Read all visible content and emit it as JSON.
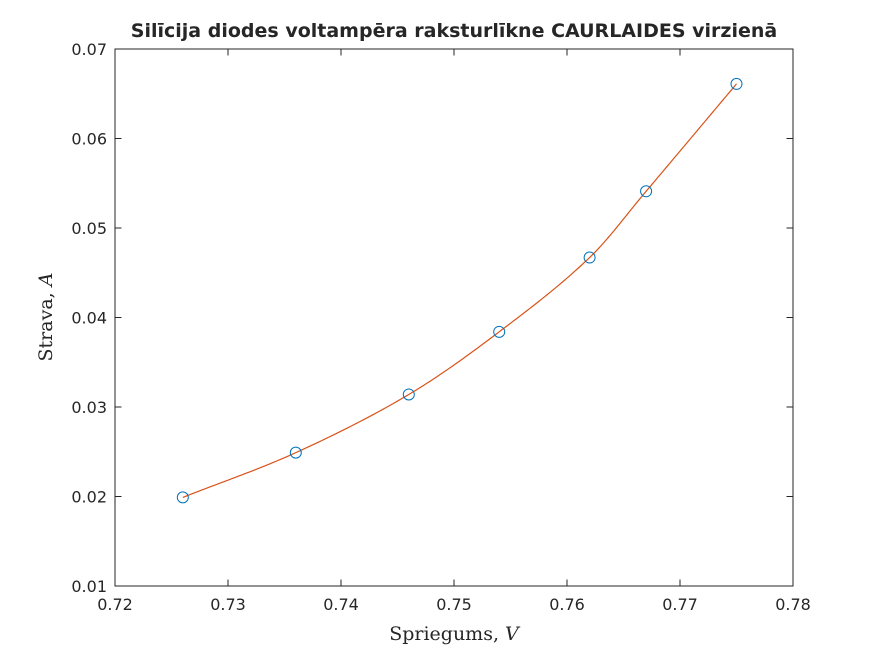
{
  "chart_data": {
    "type": "scatter",
    "title": "Silīcija diodes voltampēra raksturlīkne CAURLAIDES virzienā",
    "xlabel": "Spriegums,",
    "xlabel_var": "V",
    "ylabel": "Strava,",
    "ylabel_var": "A",
    "xlim": [
      0.72,
      0.78
    ],
    "ylim": [
      0.01,
      0.07
    ],
    "xticks": [
      "0.72",
      "0.73",
      "0.74",
      "0.75",
      "0.76",
      "0.77",
      "0.78"
    ],
    "yticks": [
      "0.01",
      "0.02",
      "0.03",
      "0.04",
      "0.05",
      "0.06",
      "0.07"
    ],
    "grid": false,
    "series": [
      {
        "kind": "markers",
        "marker": "circle",
        "color": "#0072BD",
        "x": [
          0.726,
          0.736,
          0.746,
          0.754,
          0.762,
          0.767,
          0.775
        ],
        "y": [
          0.0199,
          0.0249,
          0.0314,
          0.0384,
          0.0467,
          0.0541,
          0.0661
        ]
      },
      {
        "kind": "line",
        "style": "smooth-interpolation",
        "color": "#D95319",
        "x": [
          0.726,
          0.736,
          0.746,
          0.754,
          0.762,
          0.767,
          0.775
        ],
        "y": [
          0.0199,
          0.0249,
          0.0314,
          0.0384,
          0.0467,
          0.0541,
          0.0661
        ]
      }
    ]
  }
}
